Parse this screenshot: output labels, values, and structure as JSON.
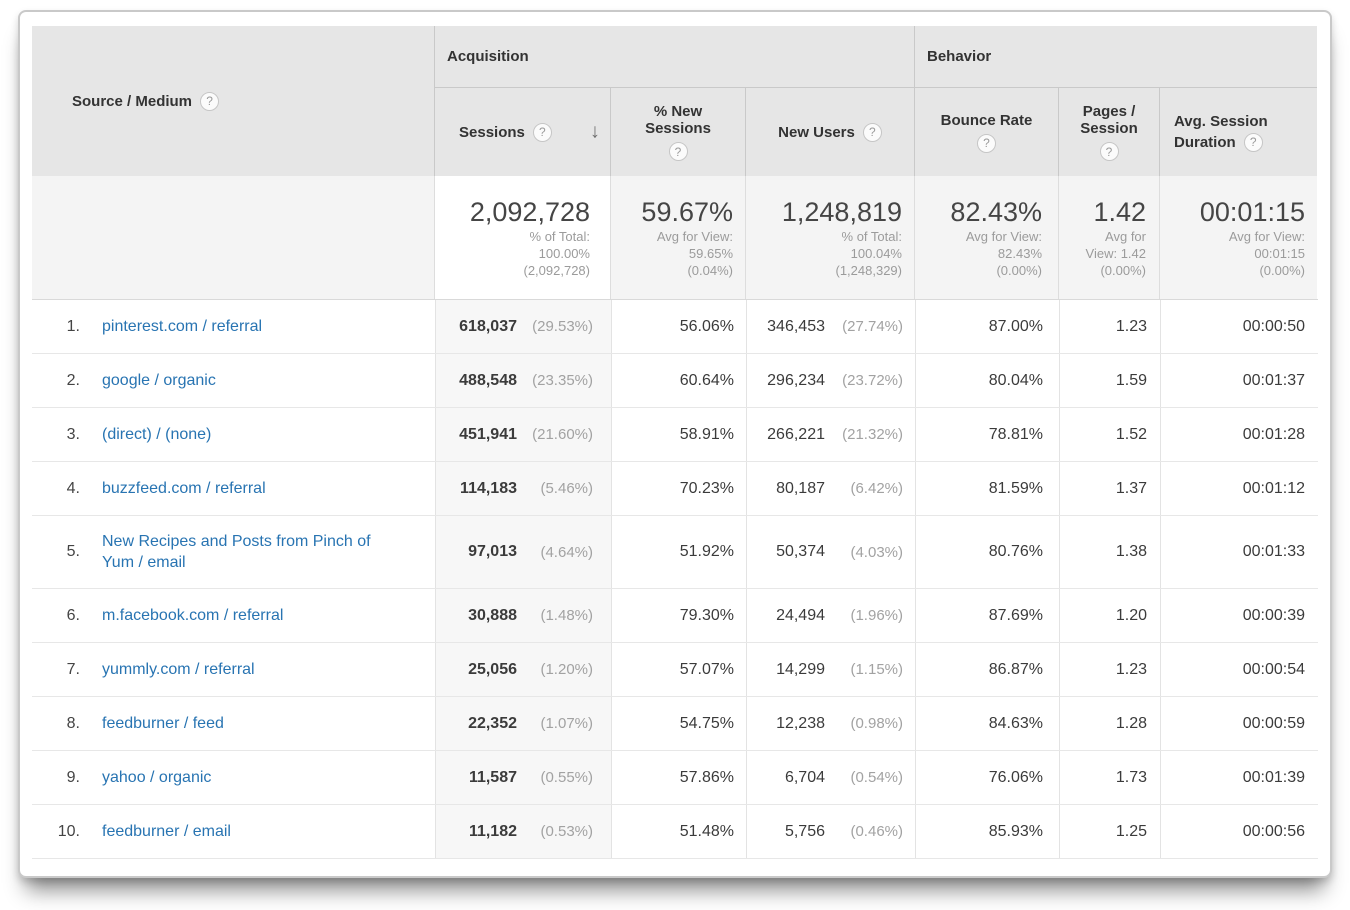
{
  "icons": {
    "help": "?",
    "sort_desc": "↓"
  },
  "colors": {
    "link_blue": "#2874b2",
    "header_bg": "#e6e6e6",
    "sorted_col_bg": "#f7f7f7"
  },
  "header": {
    "source_medium": "Source / Medium",
    "groups": {
      "acquisition": "Acquisition",
      "behavior": "Behavior"
    },
    "cols": {
      "sessions": "Sessions",
      "pct_new_line1": "% New",
      "pct_new_line2": "Sessions",
      "new_users": "New Users",
      "bounce": "Bounce Rate",
      "pages_line1": "Pages /",
      "pages_line2": "Session",
      "duration_line1": "Avg. Session",
      "duration_line2": "Duration"
    }
  },
  "summary": {
    "sessions": {
      "value": "2,092,728",
      "sub1": "% of Total:",
      "sub2": "100.00%",
      "sub3": "(2,092,728)"
    },
    "pct_new": {
      "value": "59.67%",
      "sub1": "Avg for View:",
      "sub2": "59.65%",
      "sub3": "(0.04%)"
    },
    "new_users": {
      "value": "1,248,819",
      "sub1": "% of Total:",
      "sub2": "100.04%",
      "sub3": "(1,248,329)"
    },
    "bounce": {
      "value": "82.43%",
      "sub1": "Avg for View:",
      "sub2": "82.43%",
      "sub3": "(0.00%)"
    },
    "pages": {
      "value": "1.42",
      "sub1": "Avg for",
      "sub2": "View: 1.42",
      "sub3": "(0.00%)"
    },
    "duration": {
      "value": "00:01:15",
      "sub1": "Avg for View:",
      "sub2": "00:01:15",
      "sub3": "(0.00%)"
    }
  },
  "rows": [
    {
      "rank": "1.",
      "source": "pinterest.com / referral",
      "sessions": "618,037",
      "sessions_pct": "(29.53%)",
      "pct_new": "56.06%",
      "new_users": "346,453",
      "new_users_pct": "(27.74%)",
      "bounce": "87.00%",
      "pages": "1.23",
      "duration": "00:00:50"
    },
    {
      "rank": "2.",
      "source": "google / organic",
      "sessions": "488,548",
      "sessions_pct": "(23.35%)",
      "pct_new": "60.64%",
      "new_users": "296,234",
      "new_users_pct": "(23.72%)",
      "bounce": "80.04%",
      "pages": "1.59",
      "duration": "00:01:37"
    },
    {
      "rank": "3.",
      "source": "(direct) / (none)",
      "sessions": "451,941",
      "sessions_pct": "(21.60%)",
      "pct_new": "58.91%",
      "new_users": "266,221",
      "new_users_pct": "(21.32%)",
      "bounce": "78.81%",
      "pages": "1.52",
      "duration": "00:01:28"
    },
    {
      "rank": "4.",
      "source": "buzzfeed.com / referral",
      "sessions": "114,183",
      "sessions_pct": "(5.46%)",
      "pct_new": "70.23%",
      "new_users": "80,187",
      "new_users_pct": "(6.42%)",
      "bounce": "81.59%",
      "pages": "1.37",
      "duration": "00:01:12"
    },
    {
      "rank": "5.",
      "source": "New Recipes and Posts from Pinch of Yum / email",
      "sessions": "97,013",
      "sessions_pct": "(4.64%)",
      "pct_new": "51.92%",
      "new_users": "50,374",
      "new_users_pct": "(4.03%)",
      "bounce": "80.76%",
      "pages": "1.38",
      "duration": "00:01:33"
    },
    {
      "rank": "6.",
      "source": "m.facebook.com / referral",
      "sessions": "30,888",
      "sessions_pct": "(1.48%)",
      "pct_new": "79.30%",
      "new_users": "24,494",
      "new_users_pct": "(1.96%)",
      "bounce": "87.69%",
      "pages": "1.20",
      "duration": "00:00:39"
    },
    {
      "rank": "7.",
      "source": "yummly.com / referral",
      "sessions": "25,056",
      "sessions_pct": "(1.20%)",
      "pct_new": "57.07%",
      "new_users": "14,299",
      "new_users_pct": "(1.15%)",
      "bounce": "86.87%",
      "pages": "1.23",
      "duration": "00:00:54"
    },
    {
      "rank": "8.",
      "source": "feedburner / feed",
      "sessions": "22,352",
      "sessions_pct": "(1.07%)",
      "pct_new": "54.75%",
      "new_users": "12,238",
      "new_users_pct": "(0.98%)",
      "bounce": "84.63%",
      "pages": "1.28",
      "duration": "00:00:59"
    },
    {
      "rank": "9.",
      "source": "yahoo / organic",
      "sessions": "11,587",
      "sessions_pct": "(0.55%)",
      "pct_new": "57.86%",
      "new_users": "6,704",
      "new_users_pct": "(0.54%)",
      "bounce": "76.06%",
      "pages": "1.73",
      "duration": "00:01:39"
    },
    {
      "rank": "10.",
      "source": "feedburner / email",
      "sessions": "11,182",
      "sessions_pct": "(0.53%)",
      "pct_new": "51.48%",
      "new_users": "5,756",
      "new_users_pct": "(0.46%)",
      "bounce": "85.93%",
      "pages": "1.25",
      "duration": "00:00:56"
    }
  ]
}
